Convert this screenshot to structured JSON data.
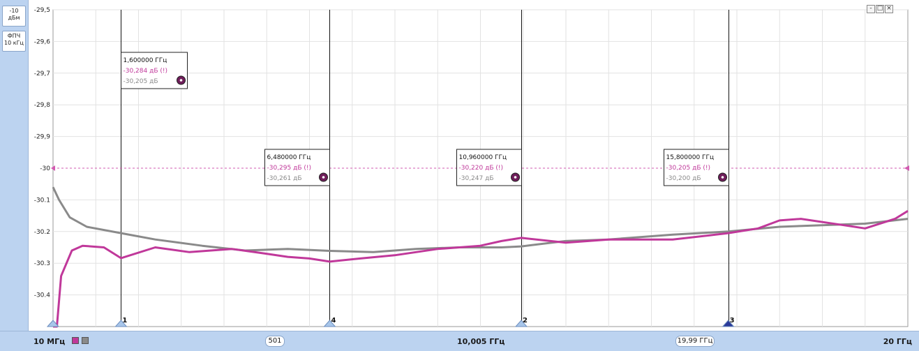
{
  "side_panel": {
    "scale_value": "-10",
    "scale_unit": "дБм",
    "filter_label": "ФПЧ",
    "filter_value": "10 кГц"
  },
  "bottom_bar": {
    "start_freq": "10 МГц",
    "points": "501",
    "center_freq": "10,005 ГГц",
    "span": "19,99 ГГц",
    "stop_freq": "20 ГГц"
  },
  "window_controls": {
    "minimize": "-",
    "maximize": "□",
    "close": "×"
  },
  "colors": {
    "trace1": "#c0389a",
    "trace2": "#8a8a8a",
    "grid": "#e2e2e2",
    "reference_line": "#d25ab0",
    "panel": "#bcd3f0",
    "marker_fill": "#6f1d5a"
  },
  "chart_data": {
    "type": "line",
    "x_unit": "GHz",
    "xlim": [
      0.01,
      20
    ],
    "ylim": [
      -30.5,
      -29.5
    ],
    "y_ticks": [
      -29.5,
      -29.6,
      -29.7,
      -29.8,
      -29.9,
      -30,
      -30.1,
      -30.2,
      -30.3,
      -30.4
    ],
    "y_tick_labels": [
      "-29,5",
      "-29,6",
      "-29,7",
      "-29,8",
      "-29,9",
      "-30",
      "-30.1",
      "-30.2",
      "-30.3",
      "-30.4"
    ],
    "reference_level": -30,
    "grid": true,
    "series": [
      {
        "x": [
          0.01,
          0.1,
          0.2,
          0.45,
          0.7,
          1.2,
          1.6,
          2.4,
          3.2,
          4.2,
          5.0,
          5.5,
          6.0,
          6.48,
          7.2,
          8.0,
          9.0,
          10.0,
          10.5,
          10.96,
          12.0,
          13.0,
          14.5,
          15.5,
          15.8,
          16.5,
          17.0,
          17.5,
          18.5,
          19.0,
          19.7,
          20.0
        ],
        "y": [
          -30.5,
          -30.5,
          -30.34,
          -30.26,
          -30.245,
          -30.25,
          -30.284,
          -30.25,
          -30.265,
          -30.255,
          -30.27,
          -30.28,
          -30.285,
          -30.295,
          -30.285,
          -30.275,
          -30.255,
          -30.245,
          -30.23,
          -30.22,
          -30.235,
          -30.225,
          -30.225,
          -30.21,
          -30.205,
          -30.19,
          -30.165,
          -30.16,
          -30.18,
          -30.19,
          -30.16,
          -30.135
        ]
      },
      {
        "x": [
          0.01,
          0.15,
          0.4,
          0.8,
          1.6,
          2.4,
          3.5,
          4.5,
          5.5,
          6.48,
          7.5,
          8.5,
          9.5,
          10.5,
          10.96,
          12.0,
          13.0,
          14.5,
          15.8,
          17.0,
          18.0,
          19.0,
          20.0
        ],
        "y": [
          -30.06,
          -30.1,
          -30.155,
          -30.185,
          -30.205,
          -30.225,
          -30.245,
          -30.26,
          -30.255,
          -30.261,
          -30.265,
          -30.255,
          -30.25,
          -30.25,
          -30.247,
          -30.23,
          -30.225,
          -30.21,
          -30.2,
          -30.185,
          -30.18,
          -30.175,
          -30.16
        ]
      }
    ],
    "markers": [
      {
        "id": "1",
        "freq": "1,600000 ГГц",
        "value1": "-30,284 дБ (!)",
        "value2": "-30,205 дБ",
        "x": 1.6,
        "y1": -30.284,
        "y2": -30.205
      },
      {
        "id": "4",
        "freq": "6,480000 ГГц",
        "value1": "-30,295 дБ (!)",
        "value2": "-30,261 дБ",
        "x": 6.48,
        "y1": -30.295,
        "y2": -30.261
      },
      {
        "id": "2",
        "freq": "10,960000 ГГц",
        "value1": "-30,220 дБ (!)",
        "value2": "-30,247 дБ",
        "x": 10.96,
        "y1": -30.22,
        "y2": -30.247
      },
      {
        "id": "3",
        "freq": "15,800000 ГГц",
        "value1": "-30,205 дБ (!)",
        "value2": "-30,200 дБ",
        "x": 15.8,
        "y1": -30.205,
        "y2": -30.2
      }
    ]
  }
}
